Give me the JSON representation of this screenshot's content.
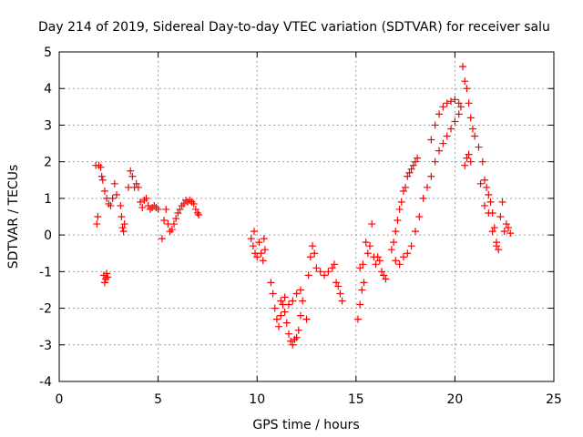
{
  "chart_data": {
    "type": "scatter",
    "title": "Day 214 of 2019, Sidereal Day-to-day VTEC variation (SDTVAR) for receiver salu",
    "xlabel": "GPS time / hours",
    "ylabel": "SDTVAR / TECUs",
    "xlim": [
      0,
      25
    ],
    "ylim": [
      -4,
      5
    ],
    "xticks": [
      "0",
      "5",
      "10",
      "15",
      "20",
      "25"
    ],
    "yticks": [
      "-4",
      "-3",
      "-2",
      "-1",
      "0",
      "1",
      "2",
      "3",
      "4",
      "5"
    ],
    "grid": true,
    "marker": "+",
    "color": "#ff0000",
    "series": [
      {
        "name": "SDTVAR",
        "points": [
          [
            1.85,
            1.9
          ],
          [
            1.9,
            0.3
          ],
          [
            1.95,
            0.5
          ],
          [
            2.0,
            1.9
          ],
          [
            2.1,
            1.85
          ],
          [
            2.15,
            1.6
          ],
          [
            2.2,
            1.5
          ],
          [
            2.25,
            -1.1
          ],
          [
            2.3,
            -1.3
          ],
          [
            2.35,
            -1.2
          ],
          [
            2.4,
            -1.05
          ],
          [
            2.45,
            -1.15
          ],
          [
            2.3,
            1.2
          ],
          [
            2.4,
            1.0
          ],
          [
            2.5,
            0.85
          ],
          [
            2.6,
            0.8
          ],
          [
            2.7,
            1.0
          ],
          [
            2.8,
            1.4
          ],
          [
            2.9,
            1.1
          ],
          [
            3.1,
            0.8
          ],
          [
            3.15,
            0.5
          ],
          [
            3.2,
            0.2
          ],
          [
            3.25,
            0.1
          ],
          [
            3.3,
            0.3
          ],
          [
            3.5,
            1.3
          ],
          [
            3.6,
            1.75
          ],
          [
            3.7,
            1.6
          ],
          [
            3.8,
            1.3
          ],
          [
            3.9,
            1.4
          ],
          [
            4.0,
            1.3
          ],
          [
            4.1,
            0.9
          ],
          [
            4.2,
            0.75
          ],
          [
            4.3,
            0.95
          ],
          [
            4.4,
            1.0
          ],
          [
            4.5,
            0.8
          ],
          [
            4.6,
            0.7
          ],
          [
            4.7,
            0.75
          ],
          [
            4.8,
            0.8
          ],
          [
            4.9,
            0.75
          ],
          [
            5.0,
            0.7
          ],
          [
            5.2,
            -0.1
          ],
          [
            5.3,
            0.4
          ],
          [
            5.4,
            0.7
          ],
          [
            5.5,
            0.3
          ],
          [
            5.6,
            0.1
          ],
          [
            5.7,
            0.15
          ],
          [
            5.8,
            0.3
          ],
          [
            5.9,
            0.45
          ],
          [
            6.0,
            0.6
          ],
          [
            6.1,
            0.7
          ],
          [
            6.2,
            0.8
          ],
          [
            6.3,
            0.85
          ],
          [
            6.4,
            0.95
          ],
          [
            6.5,
            0.9
          ],
          [
            6.6,
            0.95
          ],
          [
            6.7,
            0.9
          ],
          [
            6.8,
            0.85
          ],
          [
            6.9,
            0.7
          ],
          [
            7.0,
            0.6
          ],
          [
            7.05,
            0.55
          ],
          [
            9.7,
            -0.1
          ],
          [
            9.8,
            -0.3
          ],
          [
            9.85,
            0.1
          ],
          [
            9.9,
            -0.5
          ],
          [
            10.0,
            -0.6
          ],
          [
            10.1,
            -0.2
          ],
          [
            10.2,
            -0.5
          ],
          [
            10.3,
            -0.7
          ],
          [
            10.35,
            -0.1
          ],
          [
            10.4,
            -0.4
          ],
          [
            10.7,
            -1.3
          ],
          [
            10.8,
            -1.6
          ],
          [
            10.9,
            -2.0
          ],
          [
            11.0,
            -2.3
          ],
          [
            11.1,
            -2.5
          ],
          [
            11.2,
            -2.2
          ],
          [
            11.3,
            -1.9
          ],
          [
            11.4,
            -2.1
          ],
          [
            11.5,
            -2.4
          ],
          [
            11.6,
            -2.7
          ],
          [
            11.7,
            -2.9
          ],
          [
            11.8,
            -3.0
          ],
          [
            11.9,
            -2.85
          ],
          [
            12.0,
            -2.8
          ],
          [
            12.1,
            -2.6
          ],
          [
            12.2,
            -2.2
          ],
          [
            12.3,
            -1.8
          ],
          [
            11.2,
            -1.8
          ],
          [
            11.4,
            -1.7
          ],
          [
            11.6,
            -1.9
          ],
          [
            11.8,
            -1.8
          ],
          [
            12.0,
            -1.6
          ],
          [
            12.2,
            -1.5
          ],
          [
            12.5,
            -2.3
          ],
          [
            12.6,
            -1.1
          ],
          [
            12.7,
            -0.6
          ],
          [
            12.8,
            -0.3
          ],
          [
            12.9,
            -0.5
          ],
          [
            13.0,
            -0.9
          ],
          [
            13.2,
            -1.0
          ],
          [
            13.4,
            -1.1
          ],
          [
            13.6,
            -1.0
          ],
          [
            13.8,
            -0.9
          ],
          [
            13.9,
            -0.8
          ],
          [
            14.0,
            -1.3
          ],
          [
            14.1,
            -1.4
          ],
          [
            14.2,
            -1.6
          ],
          [
            14.3,
            -1.8
          ],
          [
            15.1,
            -2.3
          ],
          [
            15.2,
            -1.9
          ],
          [
            15.3,
            -1.5
          ],
          [
            15.4,
            -1.3
          ],
          [
            15.2,
            -0.9
          ],
          [
            15.35,
            -0.8
          ],
          [
            15.5,
            -0.2
          ],
          [
            15.6,
            -0.5
          ],
          [
            15.7,
            -0.3
          ],
          [
            15.8,
            0.3
          ],
          [
            15.9,
            -0.6
          ],
          [
            16.0,
            -0.8
          ],
          [
            16.1,
            -0.6
          ],
          [
            16.2,
            -0.7
          ],
          [
            16.3,
            -1.0
          ],
          [
            16.4,
            -1.1
          ],
          [
            16.5,
            -1.2
          ],
          [
            16.8,
            -0.4
          ],
          [
            16.9,
            -0.2
          ],
          [
            17.0,
            0.1
          ],
          [
            17.1,
            0.4
          ],
          [
            17.2,
            0.7
          ],
          [
            17.3,
            0.9
          ],
          [
            17.4,
            1.2
          ],
          [
            17.5,
            1.3
          ],
          [
            17.6,
            1.6
          ],
          [
            17.7,
            1.7
          ],
          [
            17.8,
            1.8
          ],
          [
            17.9,
            1.9
          ],
          [
            18.0,
            2.0
          ],
          [
            18.1,
            2.1
          ],
          [
            17.0,
            -0.7
          ],
          [
            17.2,
            -0.8
          ],
          [
            17.4,
            -0.6
          ],
          [
            17.6,
            -0.5
          ],
          [
            17.8,
            -0.3
          ],
          [
            18.0,
            0.1
          ],
          [
            18.2,
            0.5
          ],
          [
            18.4,
            1.0
          ],
          [
            18.6,
            1.3
          ],
          [
            18.8,
            1.6
          ],
          [
            19.0,
            2.0
          ],
          [
            19.2,
            2.3
          ],
          [
            19.4,
            2.5
          ],
          [
            19.6,
            2.7
          ],
          [
            19.8,
            2.9
          ],
          [
            20.0,
            3.1
          ],
          [
            20.2,
            3.3
          ],
          [
            18.8,
            2.6
          ],
          [
            19.0,
            3.0
          ],
          [
            19.2,
            3.3
          ],
          [
            19.4,
            3.5
          ],
          [
            19.6,
            3.6
          ],
          [
            19.8,
            3.65
          ],
          [
            20.0,
            3.7
          ],
          [
            20.2,
            3.6
          ],
          [
            20.3,
            3.5
          ],
          [
            20.4,
            4.6
          ],
          [
            20.5,
            4.2
          ],
          [
            20.6,
            4.0
          ],
          [
            20.7,
            3.6
          ],
          [
            20.8,
            3.2
          ],
          [
            20.9,
            2.9
          ],
          [
            20.5,
            1.9
          ],
          [
            20.6,
            2.1
          ],
          [
            20.7,
            2.2
          ],
          [
            20.8,
            2.0
          ],
          [
            21.0,
            2.7
          ],
          [
            21.2,
            2.4
          ],
          [
            21.4,
            2.0
          ],
          [
            21.5,
            1.5
          ],
          [
            21.6,
            1.3
          ],
          [
            21.7,
            1.1
          ],
          [
            21.8,
            0.9
          ],
          [
            21.9,
            0.6
          ],
          [
            22.0,
            0.2
          ],
          [
            22.1,
            -0.2
          ],
          [
            22.2,
            -0.4
          ],
          [
            22.3,
            0.5
          ],
          [
            22.4,
            0.9
          ],
          [
            21.3,
            1.4
          ],
          [
            21.5,
            0.8
          ],
          [
            21.7,
            0.6
          ],
          [
            21.9,
            0.1
          ],
          [
            22.1,
            -0.3
          ],
          [
            22.5,
            0.1
          ],
          [
            22.6,
            0.3
          ],
          [
            22.7,
            0.2
          ],
          [
            22.8,
            0.05
          ]
        ]
      }
    ]
  }
}
